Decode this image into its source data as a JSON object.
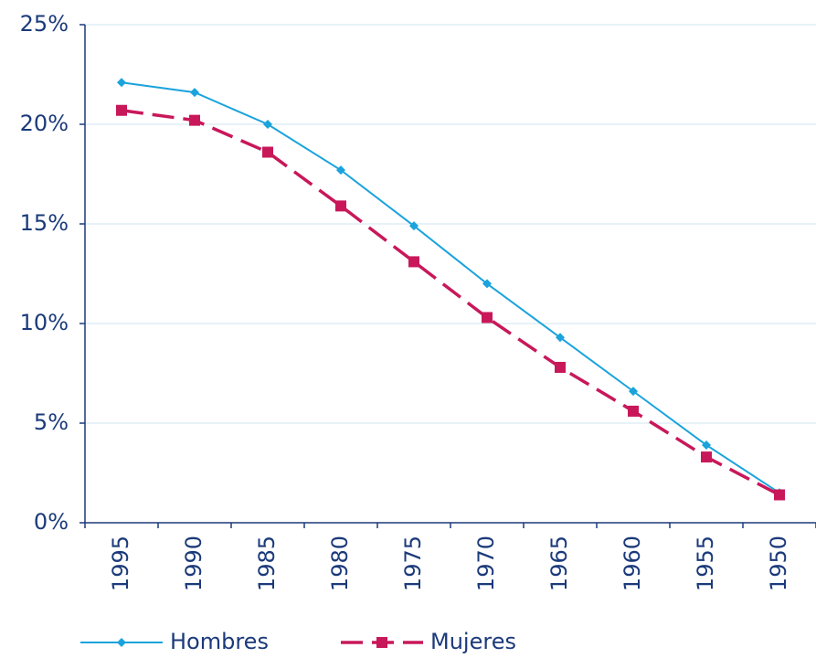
{
  "chart_data": {
    "type": "line",
    "categories": [
      "1995",
      "1990",
      "1985",
      "1980",
      "1975",
      "1970",
      "1965",
      "1960",
      "1955",
      "1950"
    ],
    "series": [
      {
        "name": "Hombres",
        "color": "#1aa3dc",
        "values": [
          22.1,
          21.6,
          20.0,
          17.7,
          14.9,
          12.0,
          9.3,
          6.6,
          3.9,
          1.5
        ]
      },
      {
        "name": "Mujeres",
        "color": "#c8185a",
        "values": [
          20.7,
          20.2,
          18.6,
          15.9,
          13.1,
          10.3,
          7.8,
          5.6,
          3.3,
          1.4
        ]
      }
    ],
    "ylim": [
      0,
      25
    ],
    "yticks": [
      {
        "value": 0,
        "label": "0%"
      },
      {
        "value": 5,
        "label": "5%"
      },
      {
        "value": 10,
        "label": "10%"
      },
      {
        "value": 15,
        "label": "15%"
      },
      {
        "value": 20,
        "label": "20%"
      },
      {
        "value": 25,
        "label": "25%"
      }
    ],
    "grid": true
  }
}
